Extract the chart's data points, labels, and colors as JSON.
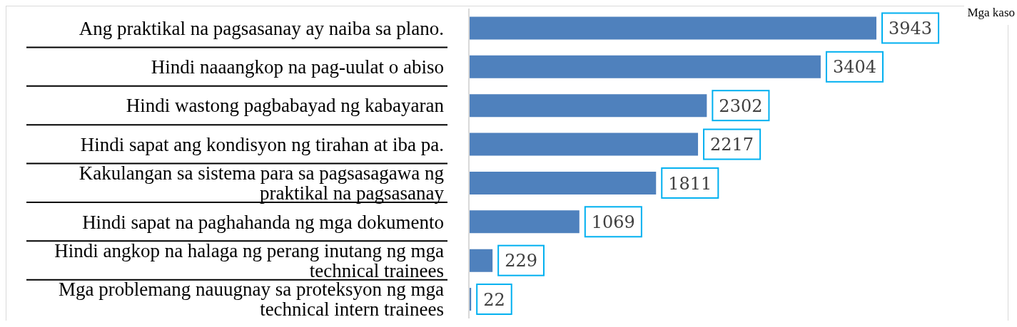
{
  "chart_data": {
    "type": "bar",
    "orientation": "horizontal",
    "annotations": [
      "Mga kaso"
    ],
    "categories": [
      "Ang praktikal na pagsasanay ay naiba sa plano.",
      "Hindi naaangkop na pag-uulat o abiso",
      "Hindi wastong pagbabayad ng kabayaran",
      "Hindi sapat ang kondisyon ng tirahan at iba pa.",
      "Kakulangan sa sistema para sa pagsasagawa ng praktikal na pagsasanay",
      "Hindi sapat na paghahanda ng mga dokumento",
      "Hindi angkop na halaga ng perang inutang ng mga technical trainees",
      "Mga problemang nauugnay sa proteksyon ng mga technical intern trainees"
    ],
    "values": [
      3943,
      3404,
      2302,
      2217,
      1811,
      1069,
      229,
      22
    ],
    "color": "#4f81bd",
    "data_labels": true,
    "tick_labels": "y"
  }
}
